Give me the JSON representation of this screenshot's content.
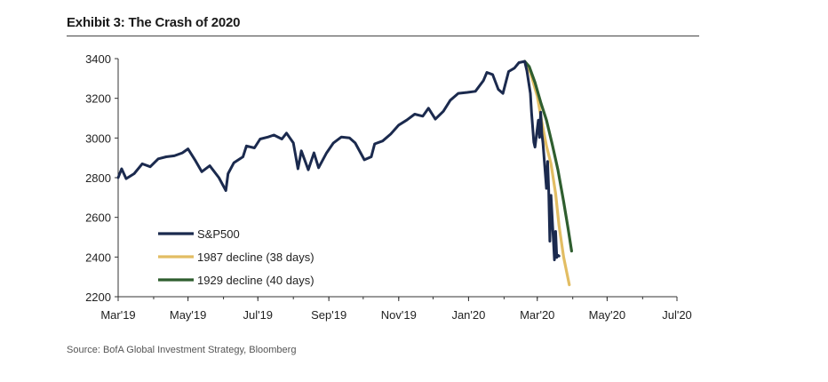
{
  "title": "Exhibit 3: The Crash of 2020",
  "source": "Source: BofA Global Investment Strategy, Bloomberg",
  "colors": {
    "sp500": "#1b2a4e",
    "d1987": "#e2bd63",
    "d1929": "#2f5e2f"
  },
  "chart_data": {
    "type": "line",
    "title": "Exhibit 3: The Crash of 2020",
    "xlabel": "",
    "ylabel": "",
    "x_ticks": [
      "Mar'19",
      "May'19",
      "Jul'19",
      "Sep'19",
      "Nov'19",
      "Jan'20",
      "Mar'20",
      "May'20",
      "Jul'20"
    ],
    "y_ticks": [
      3400,
      3200,
      3000,
      2800,
      2600,
      2400,
      2200
    ],
    "ylim": [
      2200,
      3400
    ],
    "xlim": [
      "2019-03-01",
      "2020-07-01"
    ],
    "grid": false,
    "legend_position": "bottom-left",
    "series": [
      {
        "name": "S&P500",
        "color": "#1b2a4e",
        "points": [
          [
            "2019-03-01",
            2800
          ],
          [
            "2019-03-04",
            2845
          ],
          [
            "2019-03-08",
            2795
          ],
          [
            "2019-03-15",
            2820
          ],
          [
            "2019-03-22",
            2870
          ],
          [
            "2019-03-29",
            2855
          ],
          [
            "2019-04-05",
            2895
          ],
          [
            "2019-04-12",
            2905
          ],
          [
            "2019-04-19",
            2910
          ],
          [
            "2019-04-26",
            2925
          ],
          [
            "2019-05-01",
            2945
          ],
          [
            "2019-05-07",
            2890
          ],
          [
            "2019-05-13",
            2830
          ],
          [
            "2019-05-20",
            2860
          ],
          [
            "2019-05-28",
            2800
          ],
          [
            "2019-06-03",
            2735
          ],
          [
            "2019-06-05",
            2820
          ],
          [
            "2019-06-10",
            2875
          ],
          [
            "2019-06-18",
            2905
          ],
          [
            "2019-06-21",
            2960
          ],
          [
            "2019-06-28",
            2950
          ],
          [
            "2019-07-03",
            2995
          ],
          [
            "2019-07-10",
            3005
          ],
          [
            "2019-07-15",
            3015
          ],
          [
            "2019-07-22",
            2995
          ],
          [
            "2019-07-26",
            3025
          ],
          [
            "2019-08-01",
            2975
          ],
          [
            "2019-08-05",
            2845
          ],
          [
            "2019-08-08",
            2935
          ],
          [
            "2019-08-14",
            2840
          ],
          [
            "2019-08-19",
            2925
          ],
          [
            "2019-08-23",
            2850
          ],
          [
            "2019-08-30",
            2925
          ],
          [
            "2019-09-05",
            2975
          ],
          [
            "2019-09-12",
            3005
          ],
          [
            "2019-09-19",
            3000
          ],
          [
            "2019-09-24",
            2975
          ],
          [
            "2019-10-02",
            2890
          ],
          [
            "2019-10-08",
            2905
          ],
          [
            "2019-10-11",
            2970
          ],
          [
            "2019-10-18",
            2985
          ],
          [
            "2019-10-25",
            3020
          ],
          [
            "2019-11-01",
            3065
          ],
          [
            "2019-11-08",
            3090
          ],
          [
            "2019-11-15",
            3120
          ],
          [
            "2019-11-22",
            3110
          ],
          [
            "2019-11-27",
            3150
          ],
          [
            "2019-12-03",
            3095
          ],
          [
            "2019-12-10",
            3135
          ],
          [
            "2019-12-16",
            3190
          ],
          [
            "2019-12-23",
            3225
          ],
          [
            "2019-12-31",
            3230
          ],
          [
            "2020-01-07",
            3235
          ],
          [
            "2020-01-14",
            3290
          ],
          [
            "2020-01-17",
            3330
          ],
          [
            "2020-01-22",
            3320
          ],
          [
            "2020-01-27",
            3245
          ],
          [
            "2020-01-31",
            3225
          ],
          [
            "2020-02-05",
            3335
          ],
          [
            "2020-02-10",
            3352
          ],
          [
            "2020-02-14",
            3380
          ],
          [
            "2020-02-19",
            3386
          ],
          [
            "2020-02-21",
            3338
          ],
          [
            "2020-02-24",
            3225
          ],
          [
            "2020-02-25",
            3128
          ],
          [
            "2020-02-27",
            2978
          ],
          [
            "2020-02-28",
            2954
          ],
          [
            "2020-03-02",
            3090
          ],
          [
            "2020-03-03",
            3003
          ],
          [
            "2020-03-04",
            3130
          ],
          [
            "2020-03-05",
            3023
          ],
          [
            "2020-03-06",
            2972
          ],
          [
            "2020-03-09",
            2746
          ],
          [
            "2020-03-10",
            2882
          ],
          [
            "2020-03-11",
            2741
          ],
          [
            "2020-03-12",
            2480
          ],
          [
            "2020-03-13",
            2711
          ],
          [
            "2020-03-16",
            2386
          ],
          [
            "2020-03-17",
            2529
          ],
          [
            "2020-03-18",
            2398
          ],
          [
            "2020-03-19",
            2409
          ],
          [
            "2020-03-20",
            2405
          ]
        ]
      },
      {
        "name": "1987 decline (38 days)",
        "color": "#e2bd63",
        "points": [
          [
            "2020-02-19",
            3386
          ],
          [
            "2020-02-24",
            3330
          ],
          [
            "2020-03-01",
            3210
          ],
          [
            "2020-03-05",
            3080
          ],
          [
            "2020-03-09",
            2960
          ],
          [
            "2020-03-13",
            2870
          ],
          [
            "2020-03-17",
            2720
          ],
          [
            "2020-03-20",
            2560
          ],
          [
            "2020-03-24",
            2400
          ],
          [
            "2020-03-29",
            2260
          ]
        ]
      },
      {
        "name": "1929 decline (40 days)",
        "color": "#2f5e2f",
        "points": [
          [
            "2020-02-19",
            3386
          ],
          [
            "2020-02-23",
            3360
          ],
          [
            "2020-02-28",
            3280
          ],
          [
            "2020-03-04",
            3180
          ],
          [
            "2020-03-09",
            3090
          ],
          [
            "2020-03-14",
            2970
          ],
          [
            "2020-03-19",
            2840
          ],
          [
            "2020-03-24",
            2680
          ],
          [
            "2020-03-28",
            2540
          ],
          [
            "2020-03-31",
            2430
          ]
        ]
      }
    ]
  }
}
